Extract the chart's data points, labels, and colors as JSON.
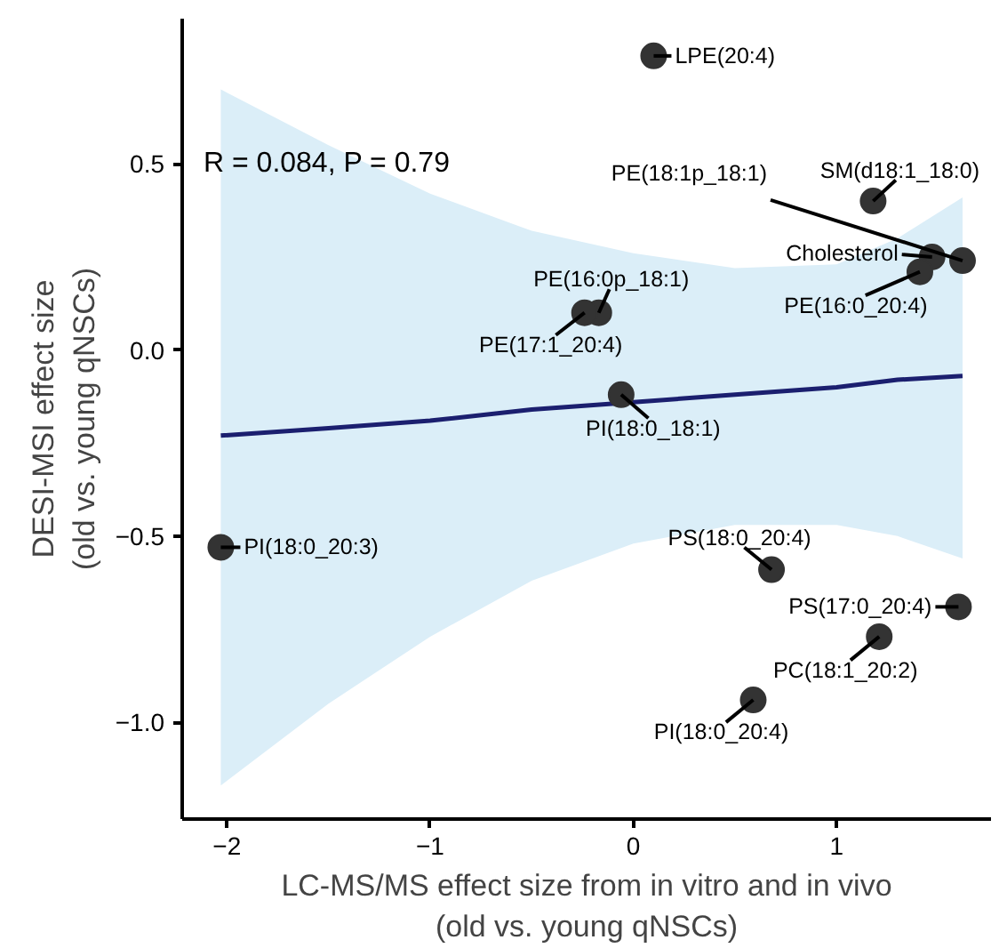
{
  "chart_data": {
    "type": "scatter",
    "xlabel": "LC-MS/MS effect size from in vitro and in vivo\n(old vs. young qNSCs)",
    "ylabel": "DESI-MSI effect size\n(old vs. young qNSCs)",
    "xlim": [
      -2.22,
      1.76
    ],
    "ylim": [
      -1.26,
      0.89
    ],
    "xticks": [
      {
        "value": -2,
        "label": "−2"
      },
      {
        "value": -1,
        "label": "−1"
      },
      0,
      1
    ],
    "yticks": [
      {
        "value": -1.0,
        "label": "−1.0"
      },
      {
        "value": -0.5,
        "label": "−0.5"
      },
      {
        "value": 0.0,
        "label": "0.0"
      },
      0.5
    ],
    "grid": false,
    "series": [
      {
        "marker": "circle",
        "color": "#333333",
        "x": [
          0.1,
          1.18,
          1.62,
          1.47,
          1.41,
          -0.17,
          -0.24,
          -0.06,
          -2.03,
          0.68,
          1.6,
          1.21,
          0.59
        ],
        "values": [
          0.79,
          0.4,
          0.24,
          0.25,
          0.21,
          0.1,
          0.1,
          -0.12,
          -0.53,
          -0.59,
          -0.69,
          -0.77,
          -0.94
        ]
      },
      {
        "type": "line",
        "marker": "none",
        "color": "#1b1f6f",
        "line_style": "solid",
        "x": [
          -2.03,
          -1.5,
          -1,
          -0.5,
          0,
          0.5,
          1,
          1.3,
          1.62
        ],
        "values": [
          -0.23,
          -0.21,
          -0.19,
          -0.16,
          -0.14,
          -0.12,
          -0.1,
          -0.08,
          -0.07
        ],
        "lower": [
          -1.17,
          -0.95,
          -0.77,
          -0.62,
          -0.52,
          -0.47,
          -0.47,
          -0.5,
          -0.56
        ],
        "upper": [
          0.7,
          0.55,
          0.42,
          0.32,
          0.26,
          0.22,
          0.23,
          0.3,
          0.41
        ]
      }
    ],
    "annotations": [
      "R = 0.084, P = 0.79",
      {
        "text": "LPE(20:4)",
        "x": 0.1,
        "y": 0.79
      },
      {
        "text": "SM(d18:1_18:0)",
        "x": 1.18,
        "y": 0.4
      },
      {
        "text": "PE(18:1p_18:1)",
        "x": 1.62,
        "y": 0.24
      },
      {
        "text": "Cholesterol",
        "x": 1.47,
        "y": 0.25
      },
      {
        "text": "PE(16:0_20:4)",
        "x": 1.41,
        "y": 0.21
      },
      {
        "text": "PE(16:0p_18:1)",
        "x": -0.17,
        "y": 0.1
      },
      {
        "text": "PE(17:1_20:4)",
        "x": -0.24,
        "y": 0.1
      },
      {
        "text": "PI(18:0_18:1)",
        "x": -0.06,
        "y": -0.12
      },
      {
        "text": "PI(18:0_20:3)",
        "x": -2.03,
        "y": -0.53
      },
      {
        "text": "PS(18:0_20:4)",
        "x": 0.68,
        "y": -0.59
      },
      {
        "text": "PS(17:0_20:4)",
        "x": 1.6,
        "y": -0.69
      },
      {
        "text": "PC(18:1_20:2)",
        "x": 1.21,
        "y": -0.77
      },
      {
        "text": "PI(18:0_20:4)",
        "x": 0.59,
        "y": -0.94
      }
    ]
  }
}
